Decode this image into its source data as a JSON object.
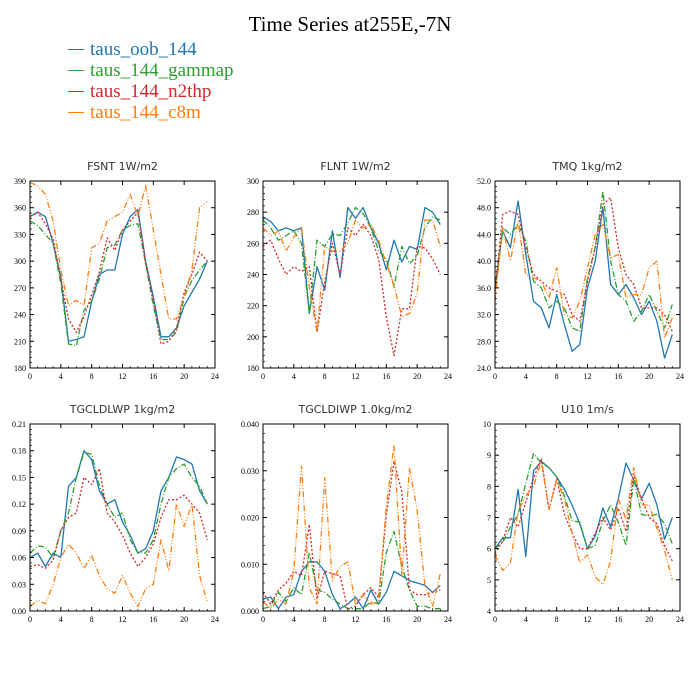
{
  "title": "Time Series at255E,-7N",
  "legend": [
    {
      "name": "taus_oob_144",
      "color": "#1f77b4"
    },
    {
      "name": "taus_144_gammap",
      "color": "#2ca02c"
    },
    {
      "name": "taus_144_n2thp",
      "color": "#d62728"
    },
    {
      "name": "taus_144_c8m",
      "color": "#ff7f0e"
    }
  ],
  "chart_data": [
    {
      "type": "line",
      "title": "FSNT   1W/m2",
      "x": [
        0,
        1,
        2,
        3,
        4,
        5,
        6,
        7,
        8,
        9,
        10,
        11,
        12,
        13,
        14,
        15,
        16,
        17,
        18,
        19,
        20,
        21,
        22,
        23
      ],
      "xlim": [
        0,
        24
      ],
      "xticks": [
        0,
        4,
        8,
        12,
        16,
        20,
        24
      ],
      "ylim": [
        180,
        390
      ],
      "yticks": [
        180,
        210,
        240,
        270,
        300,
        330,
        360,
        390
      ],
      "ytick_labels": [
        "180",
        "210",
        "240",
        "270",
        "300",
        "330",
        "360",
        "390"
      ],
      "series": [
        {
          "name": "taus_oob_144",
          "values": [
            350,
            355,
            350,
            320,
            282,
            210,
            212,
            215,
            255,
            285,
            290,
            290,
            330,
            350,
            358,
            300,
            260,
            215,
            215,
            225,
            250,
            265,
            280,
            300
          ]
        },
        {
          "name": "taus_144_gammap",
          "values": [
            345,
            340,
            330,
            320,
            275,
            207,
            205,
            245,
            255,
            280,
            315,
            318,
            335,
            340,
            342,
            298,
            250,
            212,
            212,
            220,
            260,
            278,
            290,
            300
          ]
        },
        {
          "name": "taus_144_n2thp",
          "values": [
            350,
            355,
            342,
            325,
            280,
            235,
            220,
            238,
            262,
            288,
            326,
            312,
            335,
            345,
            355,
            298,
            255,
            207,
            210,
            224,
            265,
            285,
            310,
            300
          ]
        },
        {
          "name": "taus_144_c8m",
          "values": [
            388,
            385,
            375,
            345,
            290,
            250,
            256,
            250,
            315,
            320,
            345,
            350,
            355,
            375,
            350,
            385,
            335,
            285,
            235,
            235,
            260,
            290,
            360,
            367
          ]
        }
      ]
    },
    {
      "type": "line",
      "title": "FLNT   1W/m2",
      "x": [
        0,
        1,
        2,
        3,
        4,
        5,
        6,
        7,
        8,
        9,
        10,
        11,
        12,
        13,
        14,
        15,
        16,
        17,
        18,
        19,
        20,
        21,
        22,
        23
      ],
      "xlim": [
        0,
        24
      ],
      "xticks": [
        0,
        4,
        8,
        12,
        16,
        20,
        24
      ],
      "ylim": [
        180,
        300
      ],
      "yticks": [
        180,
        200,
        220,
        240,
        260,
        280,
        300
      ],
      "ytick_labels": [
        "180",
        "200",
        "220",
        "240",
        "260",
        "280",
        "300"
      ],
      "series": [
        {
          "name": "taus_oob_144",
          "values": [
            277,
            274,
            268,
            270,
            268,
            270,
            215,
            245,
            230,
            268,
            238,
            283,
            276,
            283,
            270,
            260,
            243,
            262,
            248,
            258,
            256,
            283,
            280,
            272
          ]
        },
        {
          "name": "taus_144_gammap",
          "values": [
            275,
            270,
            262,
            265,
            268,
            260,
            215,
            262,
            258,
            266,
            265,
            273,
            283,
            279,
            270,
            255,
            250,
            232,
            258,
            247,
            252,
            270,
            277,
            275
          ]
        },
        {
          "name": "taus_144_n2thp",
          "values": [
            258,
            262,
            250,
            240,
            245,
            242,
            245,
            203,
            235,
            260,
            240,
            270,
            265,
            272,
            265,
            250,
            213,
            188,
            218,
            218,
            258,
            257,
            250,
            240
          ]
        },
        {
          "name": "taus_144_c8m",
          "values": [
            270,
            265,
            268,
            255,
            264,
            270,
            232,
            203,
            258,
            255,
            255,
            260,
            275,
            270,
            272,
            262,
            247,
            233,
            213,
            215,
            228,
            275,
            275,
            258
          ]
        }
      ]
    },
    {
      "type": "line",
      "title": "TMQ   1kg/m2",
      "x": [
        0,
        1,
        2,
        3,
        4,
        5,
        6,
        7,
        8,
        9,
        10,
        11,
        12,
        13,
        14,
        15,
        16,
        17,
        18,
        19,
        20,
        21,
        22,
        23
      ],
      "xlim": [
        0,
        24
      ],
      "xticks": [
        0,
        4,
        8,
        12,
        16,
        20,
        24
      ],
      "ylim": [
        24,
        52
      ],
      "yticks": [
        24,
        28,
        32,
        36,
        40,
        44,
        48,
        52
      ],
      "ytick_labels": [
        "24.0",
        "28.0",
        "32.0",
        "36.0",
        "40.0",
        "44.0",
        "48.0",
        "52.0"
      ],
      "series": [
        {
          "name": "taus_oob_144",
          "values": [
            36,
            44.5,
            42,
            49,
            41,
            34,
            33,
            30,
            35,
            30.5,
            26.5,
            27.5,
            36,
            40,
            48,
            36.5,
            35,
            36.5,
            34.5,
            32,
            34,
            31,
            25.5,
            29
          ]
        },
        {
          "name": "taus_144_gammap",
          "values": [
            35.5,
            45,
            44,
            45.5,
            43,
            37,
            36,
            33,
            34,
            33,
            30,
            29.5,
            37.5,
            42,
            50.5,
            40,
            35,
            34,
            31,
            32.5,
            35,
            32.5,
            30,
            33.5
          ]
        },
        {
          "name": "taus_144_n2thp",
          "values": [
            35.5,
            47,
            47.5,
            47,
            42,
            38,
            37,
            36,
            35.5,
            35,
            32,
            31,
            37,
            42,
            48.5,
            49.5,
            42,
            38,
            36.5,
            33,
            33,
            33,
            32,
            29.5
          ]
        },
        {
          "name": "taus_144_c8m",
          "values": [
            34,
            45,
            40,
            46,
            38,
            37.5,
            37,
            34.5,
            39,
            32,
            31.5,
            34,
            39,
            44,
            45.5,
            40.5,
            41,
            34.5,
            35,
            35,
            39,
            40,
            28.5,
            31.5
          ]
        }
      ]
    },
    {
      "type": "line",
      "title": "TGCLDLWP   1kg/m2",
      "x": [
        0,
        1,
        2,
        3,
        4,
        5,
        6,
        7,
        8,
        9,
        10,
        11,
        12,
        13,
        14,
        15,
        16,
        17,
        18,
        19,
        20,
        21,
        22,
        23
      ],
      "xlim": [
        0,
        24
      ],
      "xticks": [
        0,
        4,
        8,
        12,
        16,
        20,
        24
      ],
      "ylim": [
        0,
        0.21
      ],
      "yticks": [
        0,
        0.03,
        0.06,
        0.09,
        0.12,
        0.15,
        0.18,
        0.21
      ],
      "ytick_labels": [
        "0.00",
        "0.03",
        "0.06",
        "0.09",
        "0.12",
        "0.15",
        "0.18",
        "0.21"
      ],
      "series": [
        {
          "name": "taus_oob_144",
          "values": [
            0.06,
            0.065,
            0.05,
            0.065,
            0.06,
            0.14,
            0.15,
            0.18,
            0.17,
            0.135,
            0.12,
            0.125,
            0.1,
            0.085,
            0.065,
            0.07,
            0.09,
            0.135,
            0.15,
            0.173,
            0.17,
            0.165,
            0.135,
            0.12
          ]
        },
        {
          "name": "taus_144_gammap",
          "values": [
            0.065,
            0.073,
            0.072,
            0.06,
            0.09,
            0.11,
            0.15,
            0.178,
            0.176,
            0.14,
            0.12,
            0.105,
            0.11,
            0.08,
            0.065,
            0.065,
            0.08,
            0.12,
            0.15,
            0.16,
            0.165,
            0.15,
            0.14,
            0.12
          ]
        },
        {
          "name": "taus_144_n2thp",
          "values": [
            0.05,
            0.052,
            0.048,
            0.057,
            0.09,
            0.105,
            0.11,
            0.15,
            0.142,
            0.16,
            0.11,
            0.1,
            0.085,
            0.065,
            0.05,
            0.06,
            0.075,
            0.105,
            0.125,
            0.125,
            0.13,
            0.12,
            0.11,
            0.08
          ]
        },
        {
          "name": "taus_144_c8m",
          "values": [
            0.005,
            0.012,
            0.008,
            0.03,
            0.06,
            0.075,
            0.065,
            0.048,
            0.062,
            0.04,
            0.025,
            0.02,
            0.04,
            0.02,
            0.005,
            0.025,
            0.03,
            0.08,
            0.045,
            0.12,
            0.095,
            0.12,
            0.04,
            0.01
          ]
        }
      ]
    },
    {
      "type": "line",
      "title": "TGCLDIWP   1.0kg/m2",
      "x": [
        0,
        1,
        2,
        3,
        4,
        5,
        6,
        7,
        8,
        9,
        10,
        11,
        12,
        13,
        14,
        15,
        16,
        17,
        18,
        19,
        20,
        21,
        22,
        23
      ],
      "xlim": [
        0,
        24
      ],
      "xticks": [
        0,
        4,
        8,
        12,
        16,
        20,
        24
      ],
      "ylim": [
        0,
        0.04
      ],
      "yticks": [
        0,
        0.01,
        0.02,
        0.03,
        0.04
      ],
      "ytick_labels": [
        "0.000",
        "0.010",
        "0.020",
        "0.030",
        "0.040"
      ],
      "series": [
        {
          "name": "taus_oob_144",
          "values": [
            0.0025,
            0.003,
            0.0005,
            0.003,
            0.0035,
            0.0085,
            0.0105,
            0.0105,
            0.0085,
            0.0035,
            0.0005,
            0.0015,
            0.003,
            0.0005,
            0.0045,
            0.0015,
            0.004,
            0.0085,
            0.0075,
            0.0065,
            0.006,
            0.0055,
            0.004,
            0.0055
          ]
        },
        {
          "name": "taus_144_gammap",
          "values": [
            0.0005,
            0.001,
            0.004,
            0.002,
            0.005,
            0.0035,
            0.0125,
            0.0045,
            0.004,
            0.0025,
            0.0015,
            0.0005,
            0.0005,
            0.0005,
            0.002,
            0.0015,
            0.0125,
            0.017,
            0.0095,
            0.0045,
            0.001,
            0.001,
            0.0005,
            0.0005
          ]
        },
        {
          "name": "taus_144_n2thp",
          "values": [
            0.004,
            0.0015,
            0.0045,
            0.006,
            0.0085,
            0.0075,
            0.0185,
            0.0025,
            0.0085,
            0.008,
            0.0075,
            0.0005,
            0.001,
            0.0035,
            0.005,
            0.003,
            0.0205,
            0.032,
            0.0255,
            0.0045,
            0.0035,
            0.0035,
            0.004,
            0.0045
          ]
        },
        {
          "name": "taus_144_c8m",
          "values": [
            0.002,
            0.0005,
            0.0025,
            0.0015,
            0.0085,
            0.031,
            0.005,
            0.0015,
            0.0285,
            0.0065,
            0.0095,
            0.0105,
            0.0015,
            0.0035,
            0.0015,
            0.002,
            0.0225,
            0.0355,
            0.0075,
            0.0305,
            0.0215,
            0.0055,
            0.001,
            0.008
          ]
        }
      ]
    },
    {
      "type": "line",
      "title": "U10   1m/s",
      "x": [
        0,
        1,
        2,
        3,
        4,
        5,
        6,
        7,
        8,
        9,
        10,
        11,
        12,
        13,
        14,
        15,
        16,
        17,
        18,
        19,
        20,
        21,
        22,
        23
      ],
      "xlim": [
        0,
        24
      ],
      "xticks": [
        0,
        4,
        8,
        12,
        16,
        20,
        24
      ],
      "ylim": [
        4,
        10
      ],
      "yticks": [
        4,
        5,
        6,
        7,
        8,
        9,
        10
      ],
      "ytick_labels": [
        "4",
        "5",
        "6",
        "7",
        "8",
        "9",
        "10"
      ],
      "series": [
        {
          "name": "taus_oob_144",
          "values": [
            6.0,
            6.35,
            6.35,
            7.9,
            5.75,
            8.5,
            8.8,
            8.6,
            8.3,
            7.9,
            7.4,
            6.8,
            6.0,
            6.4,
            7.3,
            6.7,
            7.6,
            8.75,
            8.2,
            7.6,
            8.1,
            7.4,
            6.3,
            7.0
          ]
        },
        {
          "name": "taus_144_gammap",
          "values": [
            6.0,
            6.2,
            6.7,
            7.1,
            8.1,
            9.05,
            8.75,
            8.6,
            8.3,
            7.7,
            6.9,
            6.85,
            6.0,
            6.1,
            6.9,
            7.4,
            6.85,
            6.1,
            8.25,
            7.1,
            7.05,
            7.1,
            6.8,
            6.15
          ]
        },
        {
          "name": "taus_144_n2thp",
          "values": [
            5.85,
            6.25,
            7.0,
            6.7,
            7.5,
            8.25,
            8.9,
            7.25,
            8.25,
            7.1,
            6.5,
            6.0,
            6.0,
            6.5,
            7.0,
            6.6,
            7.3,
            6.55,
            8.4,
            7.6,
            7.0,
            6.8,
            6.1,
            5.6
          ]
        },
        {
          "name": "taus_144_c8m",
          "values": [
            5.8,
            5.3,
            5.55,
            7.2,
            7.7,
            8.0,
            8.8,
            7.25,
            8.2,
            7.6,
            6.5,
            5.55,
            5.8,
            5.1,
            4.85,
            5.6,
            7.6,
            6.95,
            8.6,
            7.4,
            7.4,
            6.65,
            5.95,
            5.0
          ]
        }
      ]
    }
  ]
}
